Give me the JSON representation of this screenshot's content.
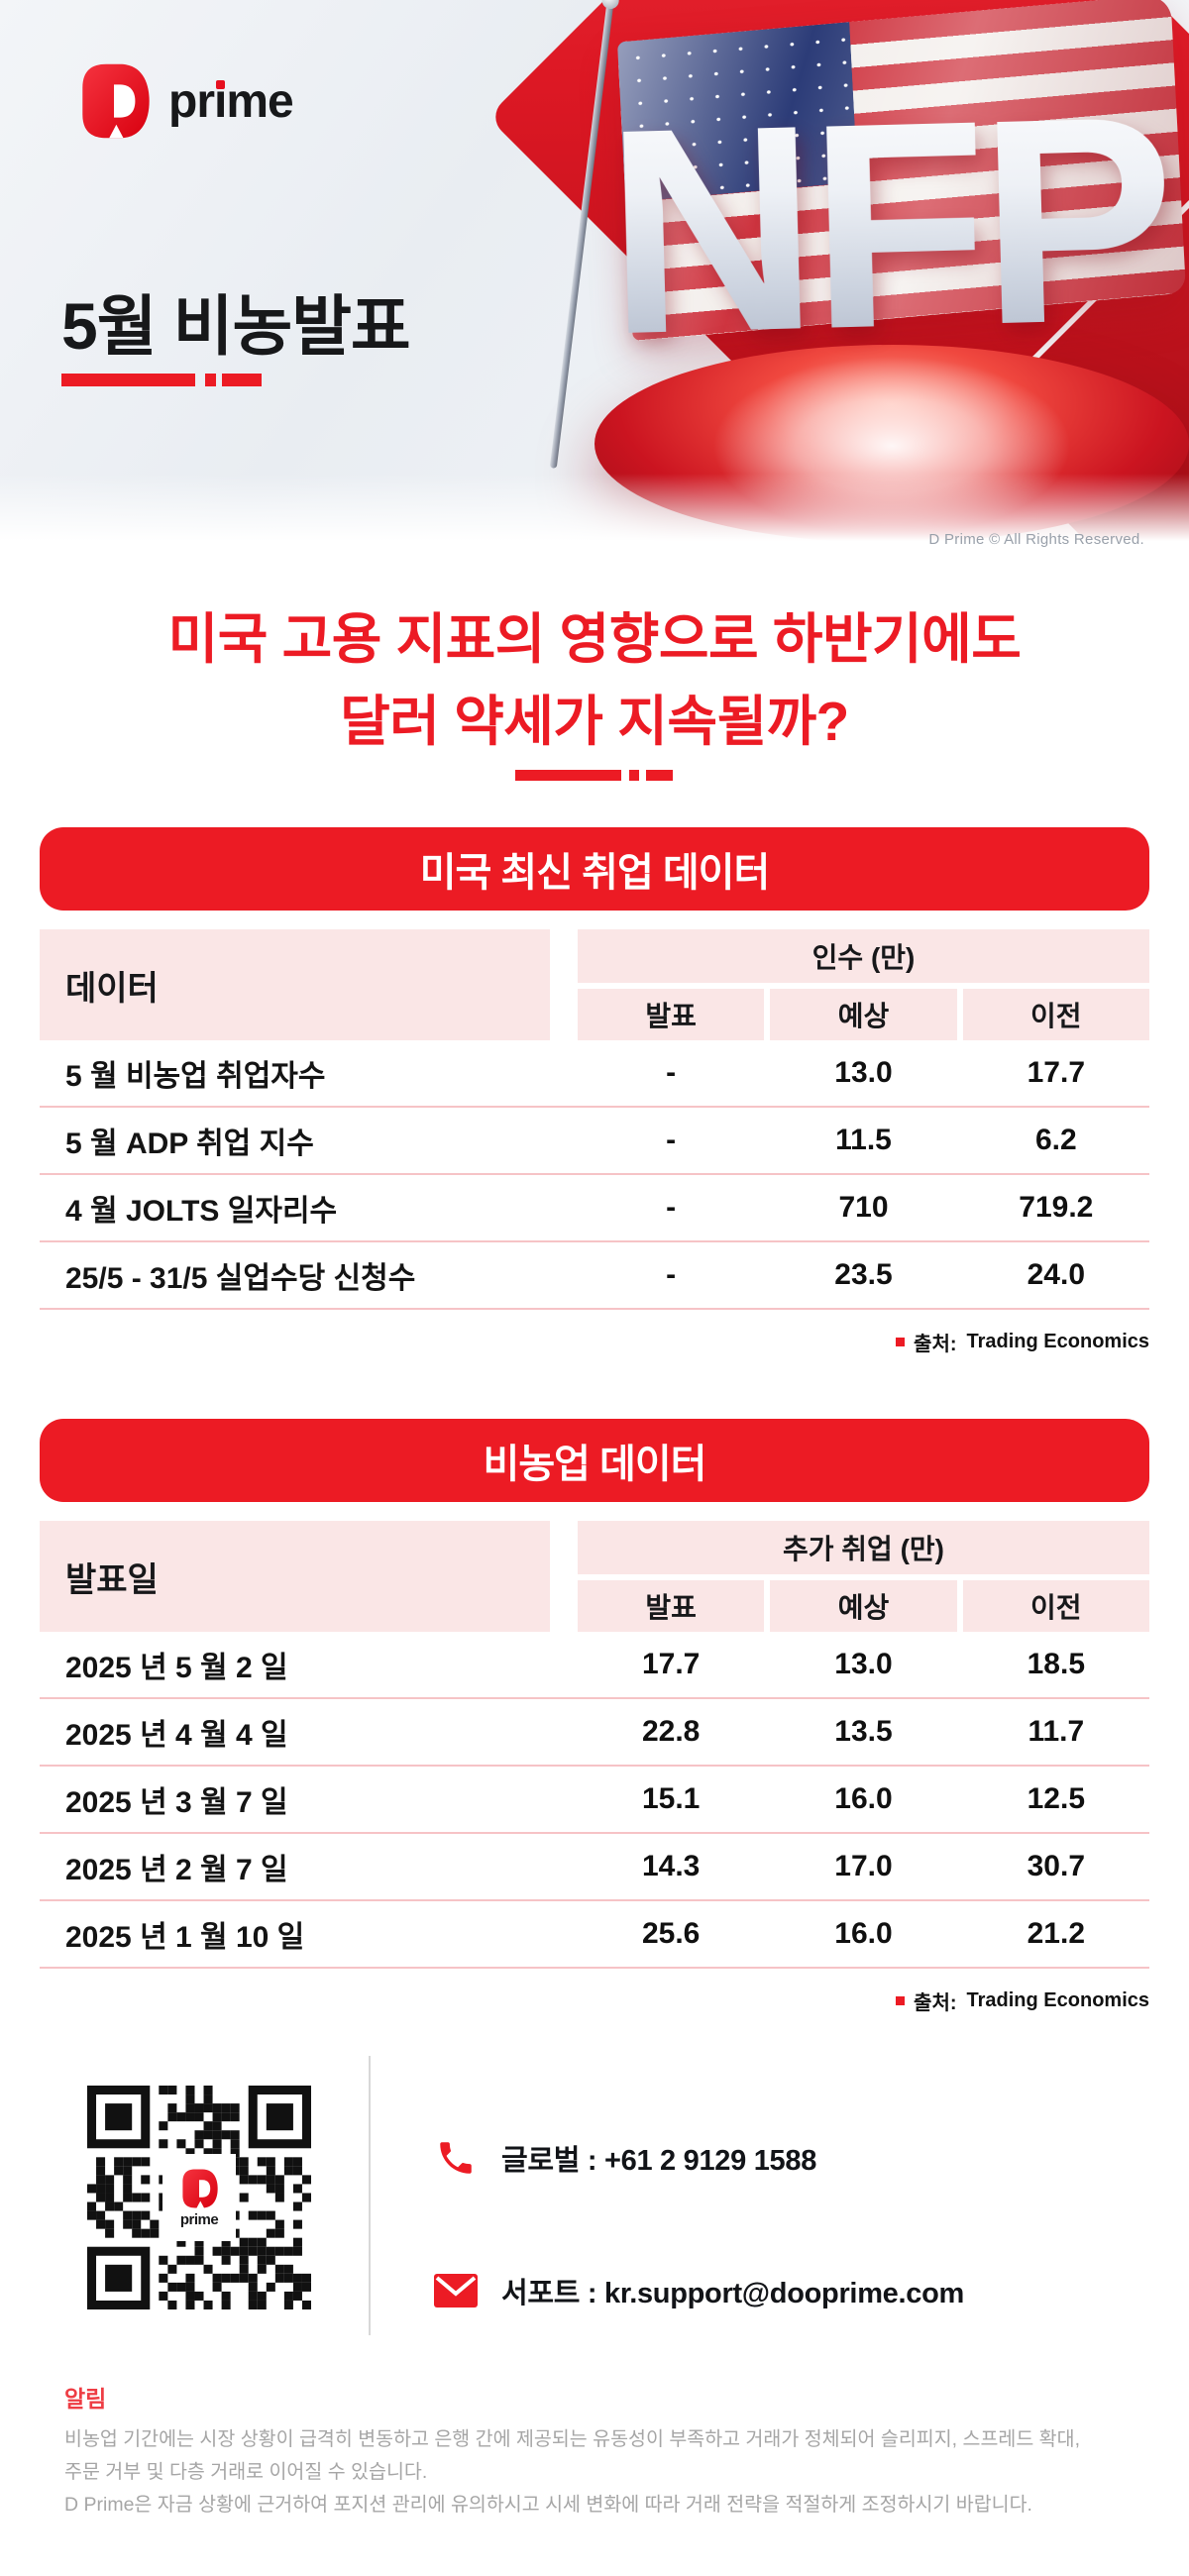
{
  "brand": {
    "logo_pr": "pr",
    "logo_i": "ı",
    "logo_me": "me",
    "qr_logo_text": "prime"
  },
  "hero": {
    "subtitle": "5월 비농발표",
    "nfp": "NFP",
    "copyright": "D Prime © All Rights Reserved."
  },
  "main_title": {
    "line1": "미국 고용 지표의 영향으로 하반기에도",
    "line2": "달러 약세가 지속될까?"
  },
  "colors": {
    "accent_red": "#EC1B24",
    "pink_cell": "#FAE6E6"
  },
  "tables": [
    {
      "title": "미국 최신 취업 데이터",
      "row_header": "데이터",
      "group_header": "인수 (만)",
      "columns": [
        "발표",
        "예상",
        "이전"
      ],
      "rows": [
        {
          "label": "5 월 비농업 취업자수",
          "values": [
            "-",
            "13.0",
            "17.7"
          ]
        },
        {
          "label": "5 월 ADP 취업 지수",
          "values": [
            "-",
            "11.5",
            "6.2"
          ]
        },
        {
          "label": "4 월 JOLTS 일자리수",
          "values": [
            "-",
            "710",
            "719.2"
          ]
        },
        {
          "label": "25/5 - 31/5 실업수당 신청수",
          "values": [
            "-",
            "23.5",
            "24.0"
          ]
        }
      ],
      "source_label": "출처:",
      "source_value": "Trading Economics"
    },
    {
      "title": "비농업 데이터",
      "row_header": "발표일",
      "group_header": "추가 취업 (만)",
      "columns": [
        "발표",
        "예상",
        "이전"
      ],
      "rows": [
        {
          "label": "2025 년 5 월 2 일",
          "values": [
            "17.7",
            "13.0",
            "18.5"
          ]
        },
        {
          "label": "2025 년 4 월 4 일",
          "values": [
            "22.8",
            "13.5",
            "11.7"
          ]
        },
        {
          "label": "2025 년 3 월 7 일",
          "values": [
            "15.1",
            "16.0",
            "12.5"
          ]
        },
        {
          "label": "2025 년 2 월 7 일",
          "values": [
            "14.3",
            "17.0",
            "30.7"
          ]
        },
        {
          "label": "2025 년 1 월 10 일",
          "values": [
            "25.6",
            "16.0",
            "21.2"
          ]
        }
      ],
      "source_label": "출처:",
      "source_value": "Trading Economics"
    }
  ],
  "contact": {
    "phone": "글로벌 : +61 2 9129 1588",
    "email": "서포트 : kr.support@dooprime.com"
  },
  "footer": {
    "title": "알림",
    "lines": [
      "비농업 기간에는 시장 상황이 급격히 변동하고 은행 간에 제공되는 유동성이 부족하고 거래가 정체되어 슬리피지, 스프레드 확대,",
      "주문 거부 및 다층 거래로 이어질 수 있습니다.",
      "D Prime은 자금 상황에 근거하여 포지션 관리에 유의하시고 시세 변화에 따라 거래 전략을 적절하게 조정하시기 바랍니다."
    ]
  }
}
